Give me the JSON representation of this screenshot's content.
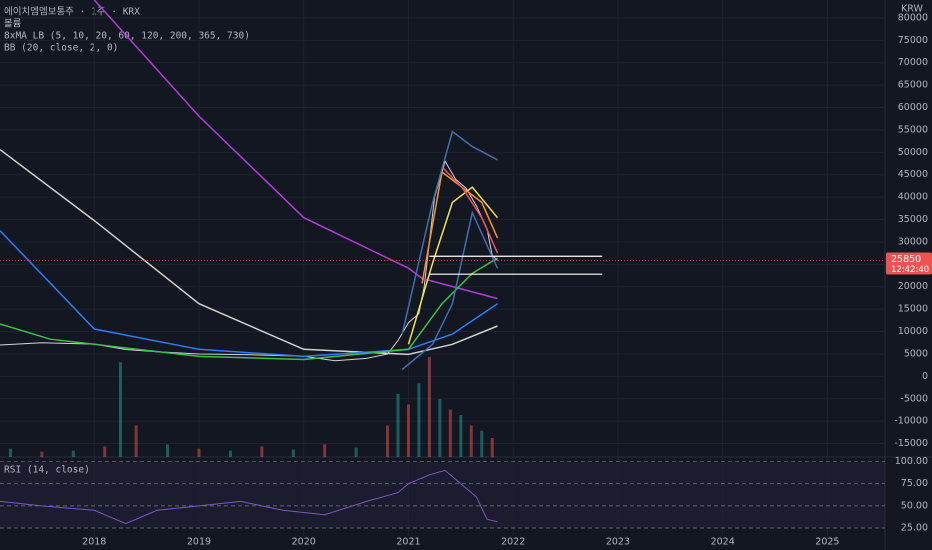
{
  "chart_data": {
    "type": "line",
    "title": "에이치엠엠보통주 · 1주 · KRX",
    "volume_label": "볼륨",
    "ma_label": "8xMA_LB (5, 10, 20, 60, 120, 200, 365, 730)",
    "bb_label": "BB (20, close, 2, 0)",
    "rsi_label": "RSI (14, close)",
    "currency": "KRW",
    "last_price": 25850,
    "countdown": "12:42:40",
    "xlim": [
      2017.1,
      2025.55
    ],
    "xticks": [
      2018,
      2019,
      2020,
      2021,
      2022,
      2023,
      2024,
      2025
    ],
    "ylim": [
      -18000,
      84000
    ],
    "yticks": [
      80000,
      75000,
      70000,
      65000,
      60000,
      55000,
      50000,
      45000,
      40000,
      35000,
      30000,
      25000,
      20000,
      15000,
      10000,
      5000,
      0,
      -5000,
      -10000,
      -15000
    ],
    "grid": true,
    "levels": [
      {
        "value": 26800,
        "x": [
          2021.2,
          2022.85
        ]
      },
      {
        "value": 22800,
        "x": [
          2021.2,
          2022.85
        ]
      }
    ],
    "series": [
      {
        "name": "close",
        "color": "#d1d4dc",
        "x": [
          2017.1,
          2017.5,
          2018.0,
          2018.3,
          2018.6,
          2019.0,
          2019.5,
          2020.0,
          2020.3,
          2020.6,
          2020.8,
          2020.9,
          2021.0,
          2021.1,
          2021.15,
          2021.25,
          2021.35,
          2021.45,
          2021.55,
          2021.65,
          2021.75,
          2021.8,
          2021.85
        ],
        "values": [
          7000,
          7500,
          7200,
          6000,
          5500,
          5000,
          4800,
          4500,
          3500,
          4000,
          5000,
          8000,
          12000,
          14000,
          20000,
          40000,
          48000,
          44000,
          42000,
          38000,
          33000,
          27000,
          25850
        ]
      },
      {
        "name": "MA730",
        "color": "#b03cd6",
        "x": [
          2018.0,
          2019.0,
          2020.0,
          2021.0,
          2021.13,
          2021.85
        ],
        "values": [
          84000,
          58060,
          35440,
          24130,
          21870,
          17350
        ]
      },
      {
        "name": "MA365",
        "color": "#d0d0d0",
        "x": [
          2017.1,
          2018.0,
          2019.0,
          2020.0,
          2021.0,
          2021.42,
          2021.85
        ],
        "values": [
          50600,
          34760,
          16210,
          6040,
          4900,
          7160,
          11240
        ]
      },
      {
        "name": "MA200",
        "color": "#2f7cf6",
        "x": [
          2017.1,
          2018.0,
          2019.0,
          2020.0,
          2021.0,
          2021.42,
          2021.85
        ],
        "values": [
          32500,
          10560,
          6040,
          4450,
          6040,
          9430,
          16210
        ]
      },
      {
        "name": "MA120",
        "color": "#3fbf4a",
        "x": [
          2017.1,
          2017.58,
          2018.0,
          2019.0,
          2020.0,
          2021.0,
          2021.32,
          2021.61,
          2021.85
        ],
        "values": [
          11690,
          8300,
          7160,
          4450,
          3770,
          6040,
          16210,
          23000,
          26390
        ]
      },
      {
        "name": "MA60",
        "color": "#f5e34b",
        "x": [
          2021.0,
          2021.23,
          2021.42,
          2021.61,
          2021.85
        ],
        "values": [
          7160,
          25250,
          38820,
          42210,
          35420
        ]
      },
      {
        "name": "MA20",
        "color": "#f5922f",
        "x": [
          2021.13,
          2021.32,
          2021.51,
          2021.7,
          2021.85
        ],
        "values": [
          20740,
          45600,
          42210,
          38820,
          30900
        ]
      },
      {
        "name": "MA10",
        "color": "#ef4f5f",
        "x": [
          2021.32,
          2021.51,
          2021.7,
          2021.85
        ],
        "values": [
          46740,
          42210,
          35420,
          27500
        ]
      },
      {
        "name": "BB upper",
        "color": "#3f6fb0",
        "x": [
          2020.94,
          2021.23,
          2021.42,
          2021.61,
          2021.85
        ],
        "values": [
          9430,
          38820,
          54660,
          51270,
          48330
        ]
      },
      {
        "name": "BB lower",
        "color": "#3f6fb0",
        "x": [
          2020.94,
          2021.23,
          2021.42,
          2021.61,
          2021.85
        ],
        "values": [
          1520,
          7160,
          16210,
          36550,
          24120
        ]
      }
    ],
    "volume": {
      "x": [
        2017.2,
        2017.5,
        2017.8,
        2018.1,
        2018.25,
        2018.4,
        2018.7,
        2019.0,
        2019.3,
        2019.6,
        2019.9,
        2020.2,
        2020.5,
        2020.8,
        2020.9,
        2021.0,
        2021.1,
        2021.2,
        2021.3,
        2021.4,
        2021.5,
        2021.6,
        2021.7,
        2021.8
      ],
      "values": [
        8,
        5,
        6,
        10,
        90,
        30,
        12,
        8,
        6,
        10,
        7,
        12,
        9,
        30,
        60,
        50,
        70,
        95,
        55,
        45,
        40,
        30,
        25,
        18
      ]
    },
    "rsi": {
      "ylim": [
        16,
        104
      ],
      "yticks": [
        {
          "value": 100,
          "label": "100.00"
        },
        {
          "value": 75,
          "label": "75.00"
        },
        {
          "value": 50,
          "label": "50.00"
        },
        {
          "value": 25,
          "label": "25.00"
        }
      ],
      "color": "#7e57c2",
      "x": [
        2017.1,
        2017.5,
        2018.0,
        2018.3,
        2018.6,
        2019.0,
        2019.4,
        2019.8,
        2020.2,
        2020.6,
        2020.9,
        2021.0,
        2021.2,
        2021.35,
        2021.5,
        2021.65,
        2021.75,
        2021.85
      ],
      "values": [
        55,
        50,
        45,
        30,
        45,
        50,
        55,
        45,
        40,
        55,
        65,
        75,
        85,
        90,
        75,
        60,
        35,
        32
      ]
    }
  }
}
